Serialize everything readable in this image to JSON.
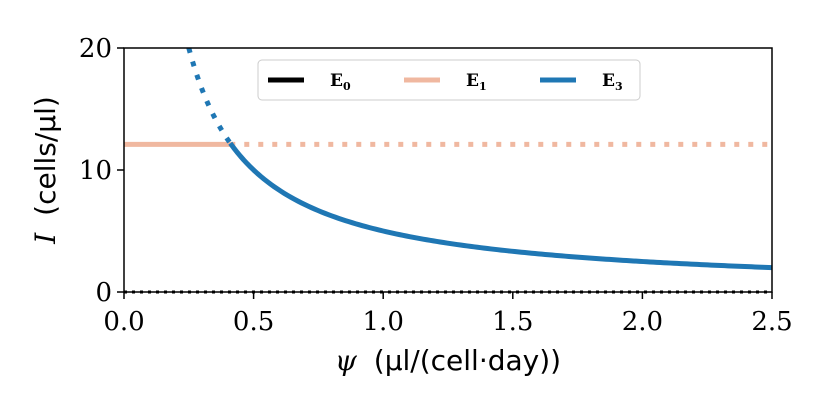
{
  "chart_data": {
    "type": "line",
    "xlabel": {
      "symbol": "ψ",
      "units": "(μl/(cell·day))"
    },
    "ylabel": {
      "symbol": "I",
      "units": "(cells/μl)"
    },
    "xlim": [
      0.0,
      2.5
    ],
    "ylim": [
      0,
      20
    ],
    "xticks": [
      0.0,
      0.5,
      1.0,
      1.5,
      2.0,
      2.5
    ],
    "xtick_labels": [
      "0.0",
      "0.5",
      "1.0",
      "1.5",
      "2.0",
      "2.5"
    ],
    "yticks": [
      0,
      10,
      20
    ],
    "ytick_labels": [
      "0",
      "10",
      "20"
    ],
    "grid": false,
    "legend_position": "top-center",
    "series": [
      {
        "name": "E",
        "subscript": "0",
        "color": "#000000",
        "kind": "constant",
        "value": 0,
        "solid_range": [],
        "dotted_range": [
          0.0,
          2.5
        ]
      },
      {
        "name": "E",
        "subscript": "1",
        "color": "#f0b8a0",
        "kind": "constant",
        "value": 12.1,
        "solid_range": [
          0.0,
          0.41
        ],
        "dotted_range": [
          0.41,
          2.5
        ]
      },
      {
        "name": "E",
        "subscript": "3",
        "color": "#1f77b4",
        "kind": "inverse",
        "k": 5.0,
        "solid_range": [
          0.41,
          2.5
        ],
        "dotted_range": [
          0.25,
          0.41
        ]
      }
    ]
  }
}
